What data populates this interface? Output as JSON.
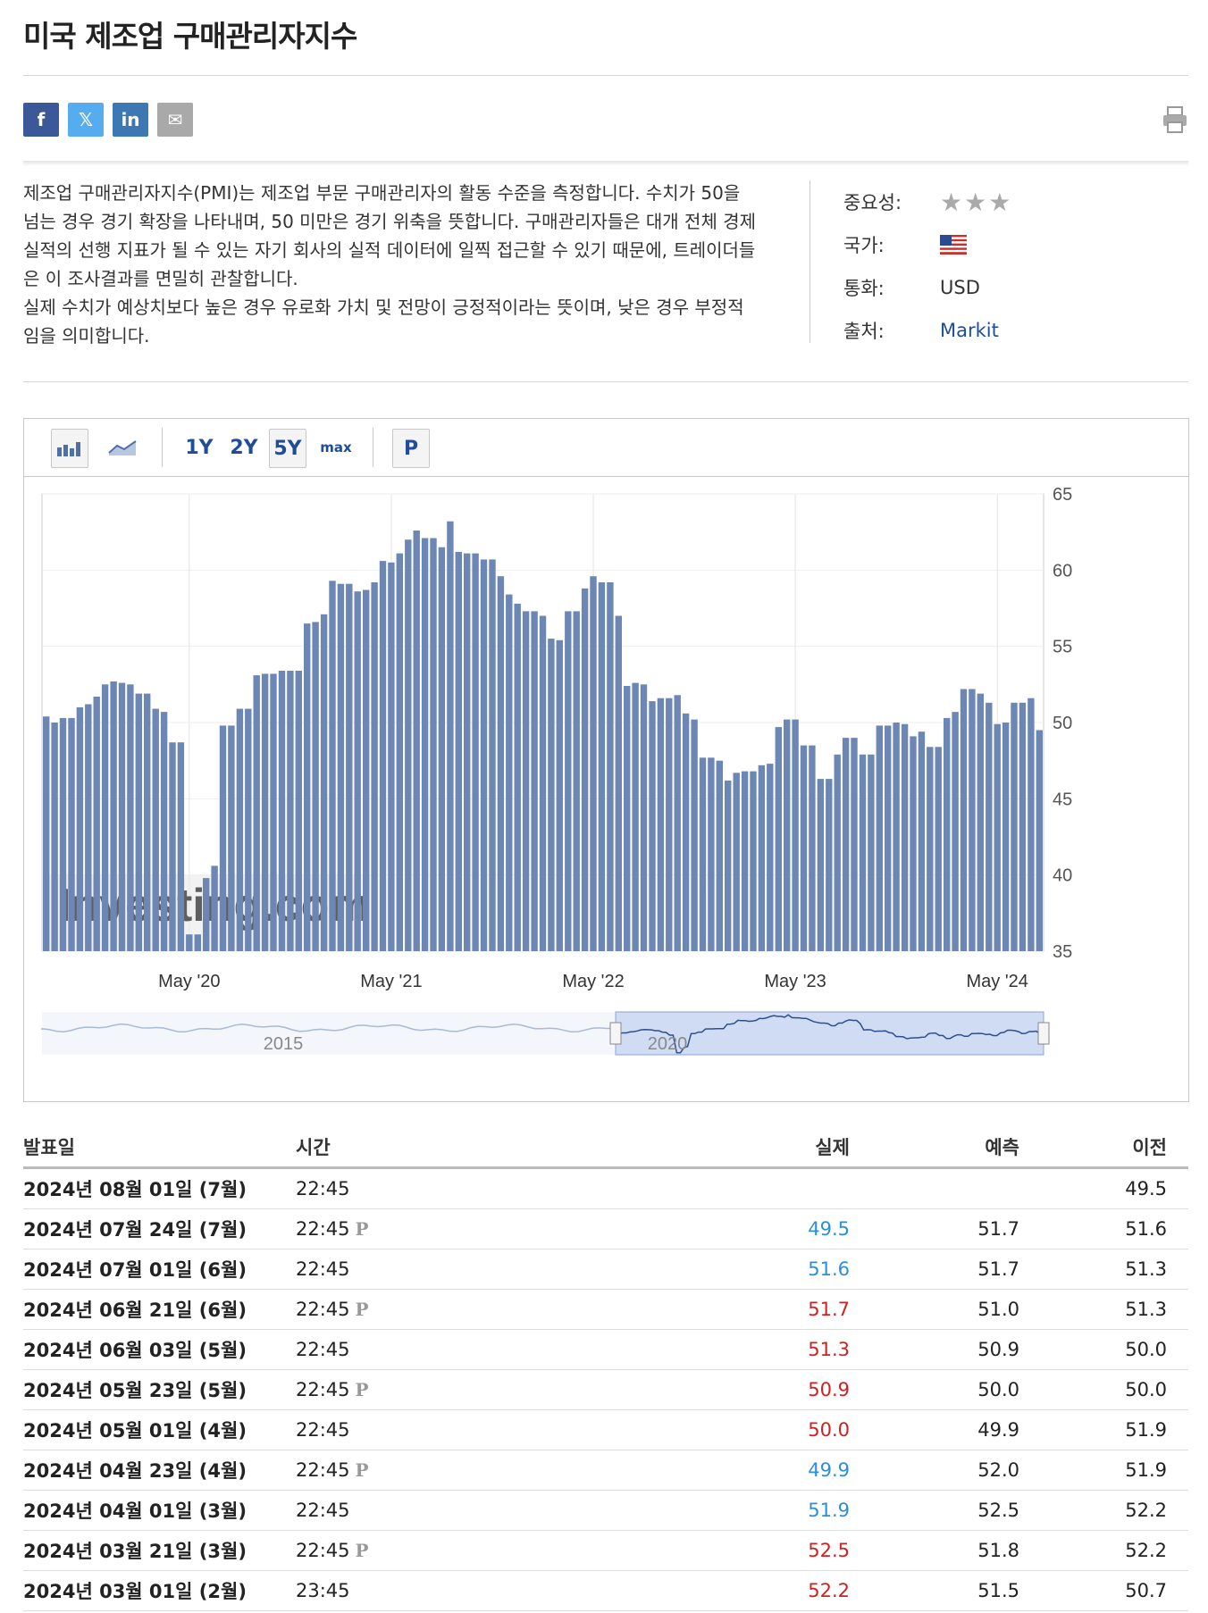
{
  "page_title": "미국 제조업 구매관리자지수",
  "share": {
    "facebook": "f",
    "twitter": "𝕏",
    "linkedin": "in",
    "email": "✉"
  },
  "description": [
    "제조업 구매관리자지수(PMI)는 제조업 부문 구매관리자의 활동 수준을 측정합니다. 수치가 50을 넘는 경우 경기 확장을 나타내며, 50 미만은 경기 위축을 뜻합니다. 구매관리자들은 대개 전체 경제 실적의 선행 지표가 될 수 있는 자기 회사의 실적 데이터에 일찍 접근할 수 있기 때문에, 트레이더들은 이 조사결과를 면밀히 관찰합니다.",
    "실제 수치가 예상치보다 높은 경우 유로화 가치 및 전망이 긍정적이라는 뜻이며, 낮은 경우 부정적임을 의미합니다."
  ],
  "info": {
    "importance_label": "중요성:",
    "importance_stars": 3,
    "country_label": "국가:",
    "country_icon": "us-flag-icon",
    "currency_label": "통화:",
    "currency": "USD",
    "source_label": "출처:",
    "source": "Markit"
  },
  "toolbar": {
    "range_1y": "1Y",
    "range_2y": "2Y",
    "range_5y": "5Y",
    "range_max": "max",
    "prelim": "P",
    "active_range": "5Y"
  },
  "chart_data": {
    "type": "bar",
    "title": "",
    "xlabel": "",
    "ylabel": "",
    "watermark": "Investing.com",
    "ylim": [
      35,
      65
    ],
    "yticks": [
      35,
      40,
      45,
      50,
      55,
      60,
      65
    ],
    "xtick_labels": [
      "May '20",
      "May '21",
      "May '22",
      "May '23",
      "May '24"
    ],
    "bar_color": "#6d87b5",
    "values": [
      50.4,
      50.0,
      50.3,
      50.3,
      51.0,
      51.2,
      51.7,
      52.5,
      52.7,
      52.6,
      52.5,
      51.9,
      51.9,
      50.9,
      50.7,
      48.7,
      48.7,
      36.1,
      36.1,
      39.8,
      40.6,
      49.8,
      49.8,
      50.9,
      50.9,
      53.1,
      53.2,
      53.2,
      53.4,
      53.4,
      53.4,
      56.5,
      56.6,
      57.1,
      59.3,
      59.1,
      59.1,
      58.6,
      58.7,
      59.2,
      60.6,
      60.5,
      61.1,
      62.0,
      62.6,
      62.1,
      62.1,
      61.5,
      63.2,
      61.2,
      61.1,
      61.1,
      60.7,
      60.7,
      59.6,
      58.4,
      57.8,
      57.3,
      57.3,
      57.0,
      55.5,
      55.4,
      57.3,
      57.3,
      58.8,
      59.6,
      59.2,
      59.2,
      57.0,
      52.4,
      52.6,
      52.5,
      51.4,
      51.6,
      51.6,
      51.8,
      50.6,
      50.2,
      47.7,
      47.7,
      47.5,
      46.2,
      46.7,
      46.8,
      46.8,
      47.2,
      47.3,
      49.7,
      50.2,
      50.2,
      48.5,
      48.5,
      46.3,
      46.3,
      47.9,
      49.0,
      49.0,
      47.9,
      47.9,
      49.8,
      49.8,
      50.0,
      49.9,
      49.1,
      49.4,
      48.4,
      48.4,
      50.3,
      50.7,
      52.2,
      52.2,
      51.9,
      51.3,
      49.9,
      50.0,
      51.3,
      51.3,
      51.6,
      49.5
    ]
  },
  "navigator": {
    "label_2015": "2015",
    "label_2020": "2020"
  },
  "table": {
    "headers": {
      "date": "발표일",
      "time": "시간",
      "actual": "실제",
      "forecast": "예측",
      "previous": "이전"
    },
    "rows": [
      {
        "date": "2024년 08월 01일 (7월)",
        "time": "22:45",
        "p": false,
        "actual": "",
        "status": "",
        "forecast": "",
        "previous": "49.5"
      },
      {
        "date": "2024년 07월 24일 (7월)",
        "time": "22:45",
        "p": true,
        "actual": "49.5",
        "status": "down",
        "forecast": "51.7",
        "previous": "51.6"
      },
      {
        "date": "2024년 07월 01일 (6월)",
        "time": "22:45",
        "p": false,
        "actual": "51.6",
        "status": "down",
        "forecast": "51.7",
        "previous": "51.3"
      },
      {
        "date": "2024년 06월 21일 (6월)",
        "time": "22:45",
        "p": true,
        "actual": "51.7",
        "status": "up",
        "forecast": "51.0",
        "previous": "51.3"
      },
      {
        "date": "2024년 06월 03일 (5월)",
        "time": "22:45",
        "p": false,
        "actual": "51.3",
        "status": "up",
        "forecast": "50.9",
        "previous": "50.0"
      },
      {
        "date": "2024년 05월 23일 (5월)",
        "time": "22:45",
        "p": true,
        "actual": "50.9",
        "status": "up",
        "forecast": "50.0",
        "previous": "50.0"
      },
      {
        "date": "2024년 05월 01일 (4월)",
        "time": "22:45",
        "p": false,
        "actual": "50.0",
        "status": "up",
        "forecast": "49.9",
        "previous": "51.9"
      },
      {
        "date": "2024년 04월 23일 (4월)",
        "time": "22:45",
        "p": true,
        "actual": "49.9",
        "status": "down",
        "forecast": "52.0",
        "previous": "51.9"
      },
      {
        "date": "2024년 04월 01일 (3월)",
        "time": "22:45",
        "p": false,
        "actual": "51.9",
        "status": "down",
        "forecast": "52.5",
        "previous": "52.2"
      },
      {
        "date": "2024년 03월 21일 (3월)",
        "time": "22:45",
        "p": true,
        "actual": "52.5",
        "status": "up",
        "forecast": "51.8",
        "previous": "52.2"
      },
      {
        "date": "2024년 03월 01일 (2월)",
        "time": "23:45",
        "p": false,
        "actual": "52.2",
        "status": "up",
        "forecast": "51.5",
        "previous": "50.7"
      }
    ]
  }
}
